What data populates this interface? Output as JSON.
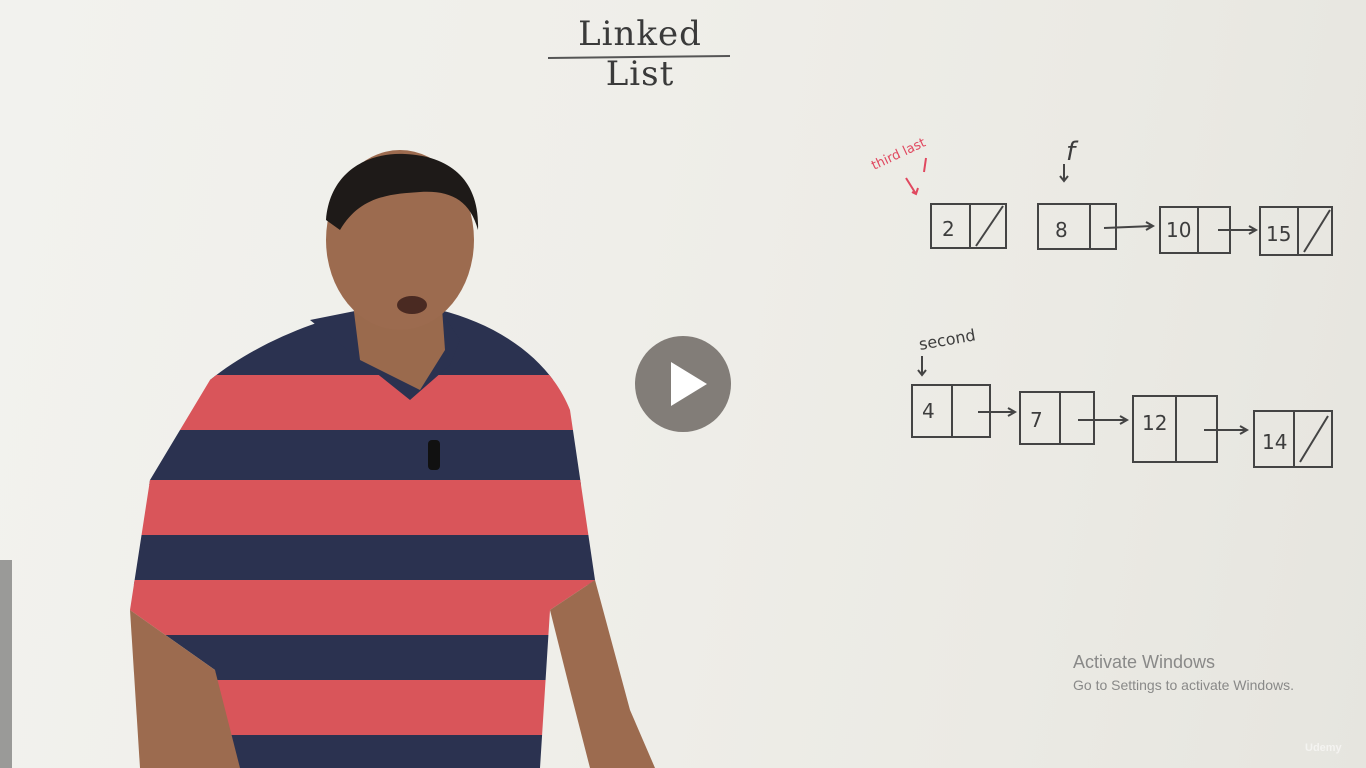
{
  "video": {
    "board_title": "Linked List",
    "first_list": {
      "pointer_label": "f",
      "annotation": "third last",
      "nodes": [
        "8",
        "10",
        "15"
      ],
      "extra_node": "2"
    },
    "second_list": {
      "pointer_label": "second",
      "nodes": [
        "4",
        "7",
        "12",
        "14"
      ]
    }
  },
  "player": {
    "play_button_label": "Play"
  },
  "watermark": {
    "title": "Activate Windows",
    "subtitle": "Go to Settings to activate Windows."
  },
  "brand": "Udemy",
  "colors": {
    "whiteboard": "#efeee9",
    "marker": "#3d3d3d",
    "red_marker": "#e0485f",
    "shirt_navy": "#2b3250",
    "shirt_red": "#d9555a"
  }
}
